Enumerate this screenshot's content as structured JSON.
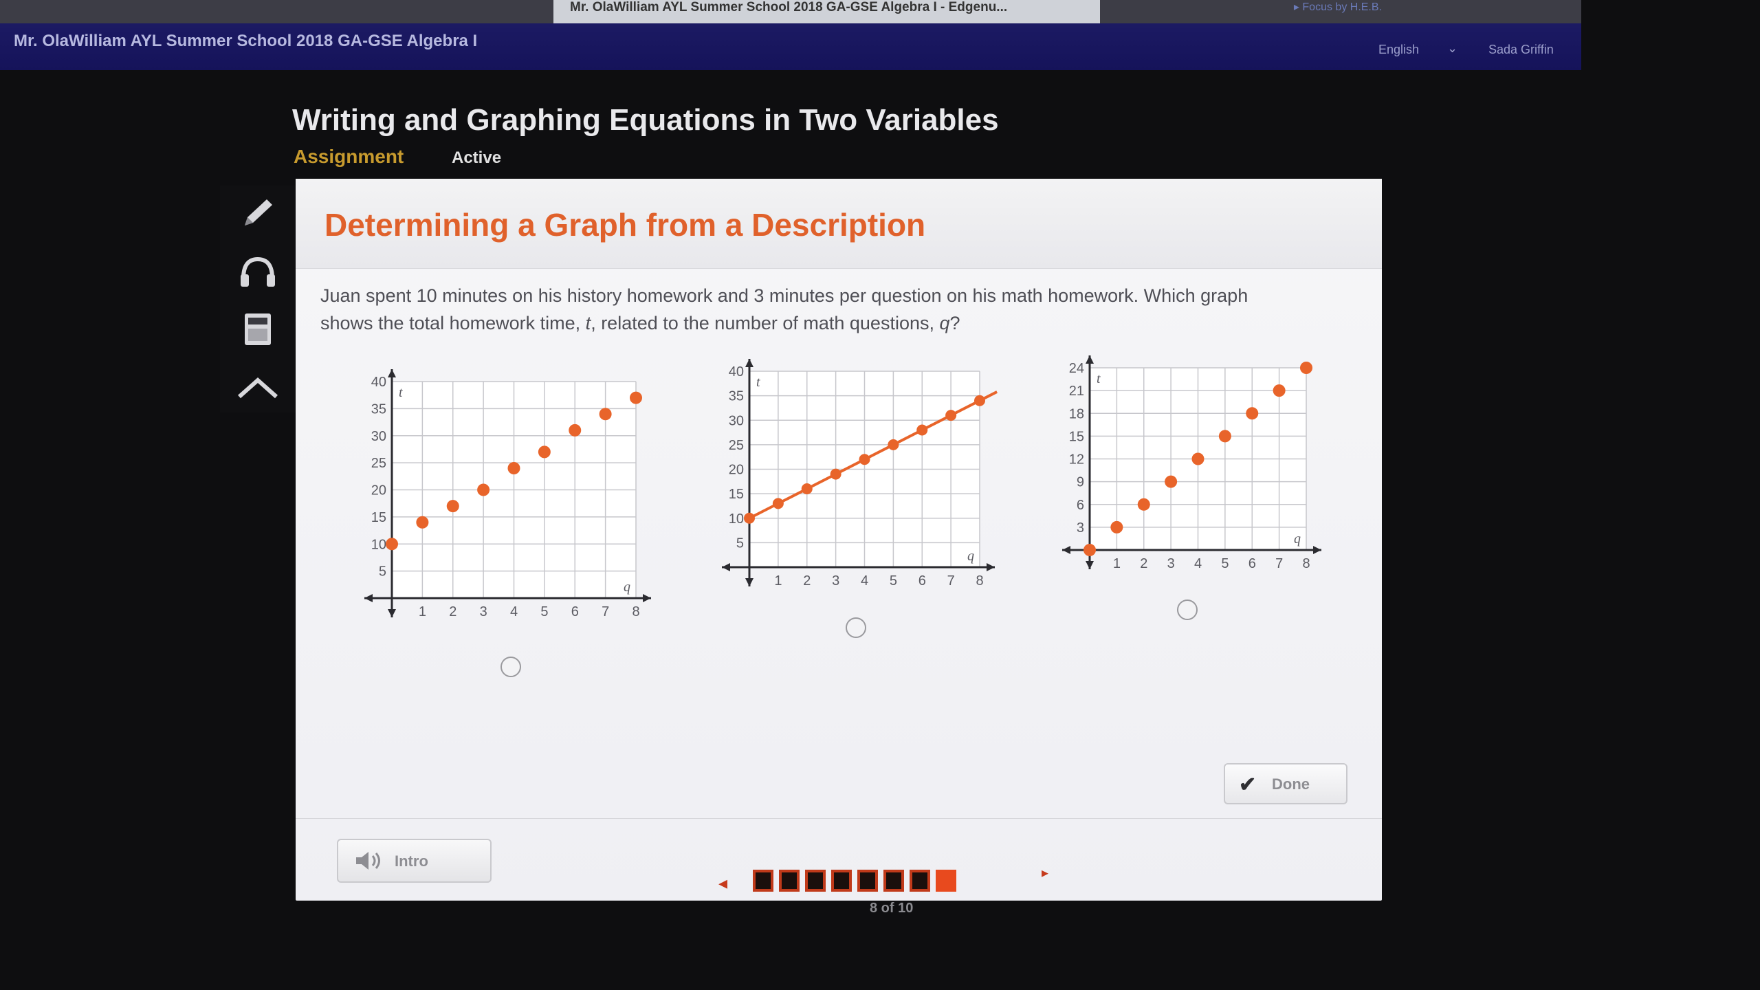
{
  "browser": {
    "tab_title": "Mr. OlaWilliam AYL Summer School 2018 GA-GSE Algebra I - Edgenu...",
    "right_text": "▸ Focus by H.E.B."
  },
  "header": {
    "course_title": "Mr. OlaWilliam AYL Summer School 2018 GA-GSE Algebra I",
    "language": "English",
    "user_name": "Sada Griffin"
  },
  "lesson": {
    "title": "Writing and Graphing Equations in Two Variables",
    "assignment_label": "Assignment",
    "status": "Active"
  },
  "toolbar": {
    "icons": [
      "pencil-icon",
      "headphones-icon",
      "calculator-icon",
      "collapse-icon"
    ]
  },
  "activity": {
    "title": "Determining a Graph from a Description",
    "question_line1": "Juan spent 10 minutes on his history homework and 3 minutes per question on his math homework. Which graph",
    "question_line2_prefix": "shows the total homework time, ",
    "var_t": "t",
    "question_line2_mid": ", related to the number of math questions, ",
    "var_q": "q",
    "question_line2_suffix": "?"
  },
  "chart_data": [
    {
      "type": "scatter",
      "xlabel": "q",
      "ylabel": "t",
      "x_ticks": [
        "1",
        "2",
        "3",
        "4",
        "5",
        "6",
        "7",
        "8"
      ],
      "y_ticks": [
        "5",
        "10",
        "15",
        "20",
        "25",
        "30",
        "35",
        "40"
      ],
      "xlim": [
        0,
        8
      ],
      "ylim": [
        0,
        40
      ],
      "connected": false,
      "x": [
        0,
        1,
        2,
        3,
        4,
        5,
        6,
        7,
        8
      ],
      "y": [
        10,
        14,
        17,
        20,
        24,
        27,
        31,
        34,
        37
      ]
    },
    {
      "type": "line",
      "xlabel": "q",
      "ylabel": "t",
      "x_ticks": [
        "1",
        "2",
        "3",
        "4",
        "5",
        "6",
        "7",
        "8"
      ],
      "y_ticks": [
        "5",
        "10",
        "15",
        "20",
        "25",
        "30",
        "35",
        "40"
      ],
      "xlim": [
        0,
        8
      ],
      "ylim": [
        0,
        40
      ],
      "connected": true,
      "x": [
        0,
        1,
        2,
        3,
        4,
        5,
        6,
        7,
        8
      ],
      "y": [
        10,
        13,
        16,
        19,
        22,
        25,
        28,
        31,
        34
      ]
    },
    {
      "type": "scatter",
      "xlabel": "q",
      "ylabel": "t",
      "x_ticks": [
        "1",
        "2",
        "3",
        "4",
        "5",
        "6",
        "7",
        "8"
      ],
      "y_ticks": [
        "3",
        "6",
        "9",
        "12",
        "15",
        "18",
        "21",
        "24"
      ],
      "xlim": [
        0,
        8
      ],
      "ylim": [
        0,
        24
      ],
      "connected": false,
      "x": [
        0,
        1,
        2,
        3,
        4,
        5,
        6,
        7,
        8
      ],
      "y": [
        0,
        3,
        6,
        9,
        12,
        15,
        18,
        21,
        24
      ]
    }
  ],
  "colors": {
    "accent": "#e0612b",
    "point": "#e8642a",
    "header_bg": "#1a1860"
  },
  "controls": {
    "done_label": "Done",
    "intro_label": "Intro"
  },
  "pager": {
    "total": 10,
    "current": 8,
    "visible_squares": 8,
    "label": "8 of 10"
  }
}
